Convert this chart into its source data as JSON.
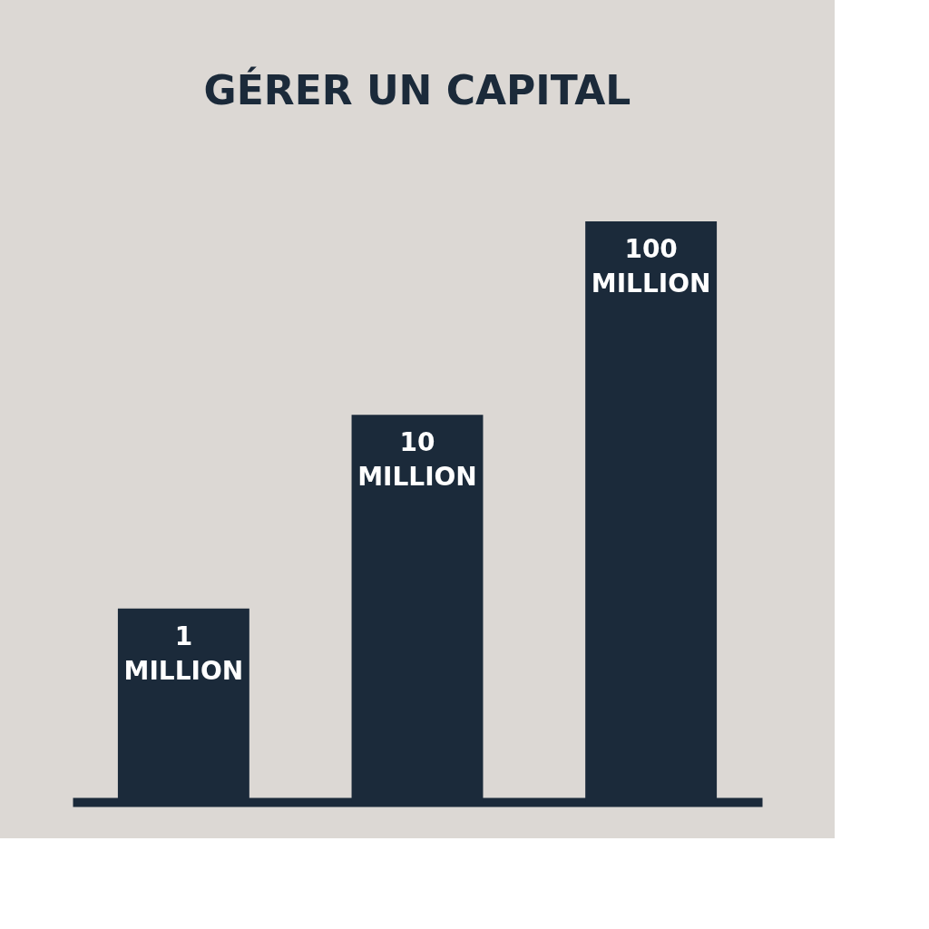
{
  "chart_data": {
    "type": "bar",
    "title": "GÉRER UN CAPITAL",
    "categories": [
      null,
      null,
      null
    ],
    "values": [
      1,
      10,
      100
    ],
    "value_labels": [
      "1 MILLION",
      "10 MILLION",
      "100 MILLION"
    ],
    "log": true,
    "ylim": [
      0.1,
      100
    ],
    "tick_labels": false,
    "color": "#1b2a3a"
  }
}
